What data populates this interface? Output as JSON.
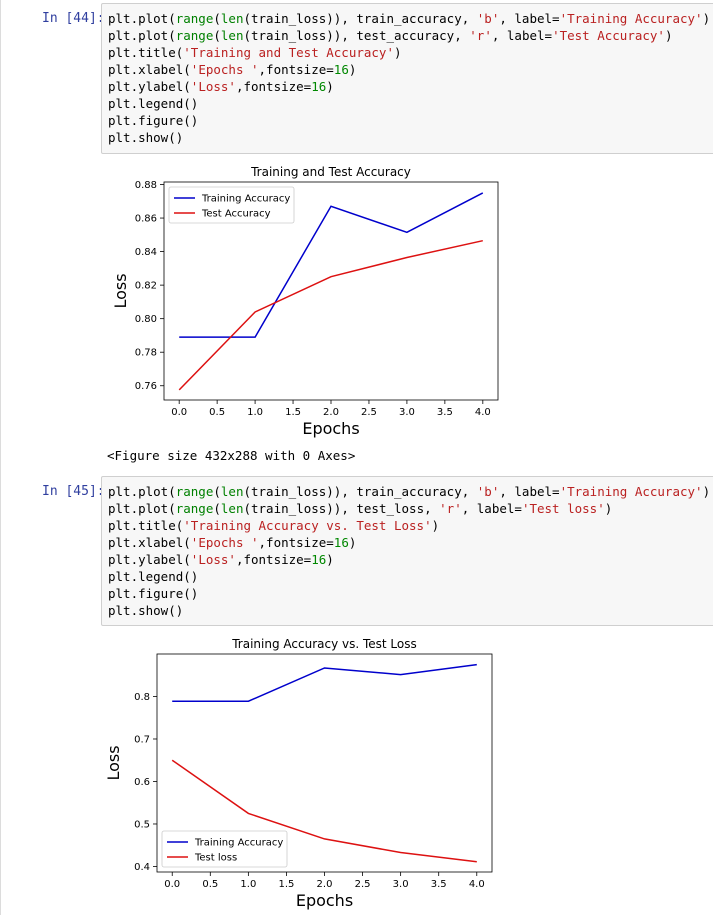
{
  "cells": [
    {
      "prompt": "In [44]:",
      "code": [
        [
          [
            "plt.plot(",
            ""
          ],
          [
            "range",
            "b"
          ],
          [
            "(",
            ""
          ],
          [
            "len",
            "b"
          ],
          [
            "(train_loss)), train_accuracy, ",
            ""
          ],
          [
            "'b'",
            "s"
          ],
          [
            ", label=",
            ""
          ],
          [
            "'Training Accuracy'",
            "s"
          ],
          [
            ")",
            ""
          ]
        ],
        [
          [
            "plt.plot(",
            ""
          ],
          [
            "range",
            "b"
          ],
          [
            "(",
            ""
          ],
          [
            "len",
            "b"
          ],
          [
            "(train_loss)), test_accuracy, ",
            ""
          ],
          [
            "'r'",
            "s"
          ],
          [
            ", label=",
            ""
          ],
          [
            "'Test Accuracy'",
            "s"
          ],
          [
            ")",
            ""
          ]
        ],
        [
          [
            "plt.title(",
            ""
          ],
          [
            "'Training and Test Accuracy'",
            "s"
          ],
          [
            ")",
            ""
          ]
        ],
        [
          [
            "plt.xlabel(",
            ""
          ],
          [
            "'Epochs '",
            "s"
          ],
          [
            ",fontsize=",
            ""
          ],
          [
            "16",
            "n"
          ],
          [
            ")",
            ""
          ]
        ],
        [
          [
            "plt.ylabel(",
            ""
          ],
          [
            "'Loss'",
            "s"
          ],
          [
            ",fontsize=",
            ""
          ],
          [
            "16",
            "n"
          ],
          [
            ")",
            ""
          ]
        ],
        [
          [
            "plt.legend()",
            ""
          ]
        ],
        [
          [
            "plt.figure()",
            ""
          ]
        ],
        [
          [
            "plt.show()",
            ""
          ]
        ]
      ],
      "output_text": "<Figure size 432x288 with 0 Axes>"
    },
    {
      "prompt": "In [45]:",
      "code": [
        [
          [
            "plt.plot(",
            ""
          ],
          [
            "range",
            "b"
          ],
          [
            "(",
            ""
          ],
          [
            "len",
            "b"
          ],
          [
            "(train_loss)), train_accuracy, ",
            ""
          ],
          [
            "'b'",
            "s"
          ],
          [
            ", label=",
            ""
          ],
          [
            "'Training Accuracy'",
            "s"
          ],
          [
            ")",
            ""
          ]
        ],
        [
          [
            "plt.plot(",
            ""
          ],
          [
            "range",
            "b"
          ],
          [
            "(",
            ""
          ],
          [
            "len",
            "b"
          ],
          [
            "(train_loss)), test_loss, ",
            ""
          ],
          [
            "'r'",
            "s"
          ],
          [
            ", label=",
            ""
          ],
          [
            "'Test loss'",
            "s"
          ],
          [
            ")",
            ""
          ]
        ],
        [
          [
            "plt.title(",
            ""
          ],
          [
            "'Training Accuracy vs. Test Loss'",
            "s"
          ],
          [
            ")",
            ""
          ]
        ],
        [
          [
            "plt.xlabel(",
            ""
          ],
          [
            "'Epochs '",
            "s"
          ],
          [
            ",fontsize=",
            ""
          ],
          [
            "16",
            "n"
          ],
          [
            ")",
            ""
          ]
        ],
        [
          [
            "plt.ylabel(",
            ""
          ],
          [
            "'Loss'",
            "s"
          ],
          [
            ",fontsize=",
            ""
          ],
          [
            "16",
            "n"
          ],
          [
            ")",
            ""
          ]
        ],
        [
          [
            "plt.legend()",
            ""
          ]
        ],
        [
          [
            "plt.figure()",
            ""
          ]
        ],
        [
          [
            "plt.show()",
            ""
          ]
        ]
      ]
    }
  ],
  "chart_data": [
    {
      "type": "line",
      "title": "Training and Test Accuracy",
      "xlabel": "Epochs",
      "ylabel": "Loss",
      "x": [
        0,
        1,
        2,
        3,
        4
      ],
      "xlim": [
        -0.2,
        4.2
      ],
      "ylim": [
        0.7515,
        0.8815
      ],
      "xticks": [
        0.0,
        0.5,
        1.0,
        1.5,
        2.0,
        2.5,
        3.0,
        3.5,
        4.0
      ],
      "yticks": [
        0.76,
        0.78,
        0.8,
        0.82,
        0.84,
        0.86,
        0.88
      ],
      "xtick_decimals": 1,
      "ytick_decimals": 2,
      "legend_position": "upper left",
      "series": [
        {
          "name": "Training Accuracy",
          "color": "#0000cc",
          "values": [
            0.789,
            0.789,
            0.867,
            0.8515,
            0.875
          ]
        },
        {
          "name": "Test Accuracy",
          "color": "#dd1111",
          "values": [
            0.7575,
            0.804,
            0.825,
            0.8365,
            0.8465
          ]
        }
      ]
    },
    {
      "type": "line",
      "title": "Training Accuracy vs. Test Loss",
      "xlabel": "Epochs",
      "ylabel": "Loss",
      "x": [
        0,
        1,
        2,
        3,
        4
      ],
      "xlim": [
        -0.2,
        4.2
      ],
      "ylim": [
        0.387,
        0.9
      ],
      "xticks": [
        0.0,
        0.5,
        1.0,
        1.5,
        2.0,
        2.5,
        3.0,
        3.5,
        4.0
      ],
      "yticks": [
        0.4,
        0.5,
        0.6,
        0.7,
        0.8
      ],
      "xtick_decimals": 1,
      "ytick_decimals": 1,
      "legend_position": "lower left",
      "series": [
        {
          "name": "Training Accuracy",
          "color": "#0000cc",
          "values": [
            0.789,
            0.789,
            0.867,
            0.8515,
            0.875
          ]
        },
        {
          "name": "Test loss",
          "color": "#dd1111",
          "values": [
            0.65,
            0.525,
            0.465,
            0.433,
            0.411
          ]
        }
      ]
    }
  ]
}
